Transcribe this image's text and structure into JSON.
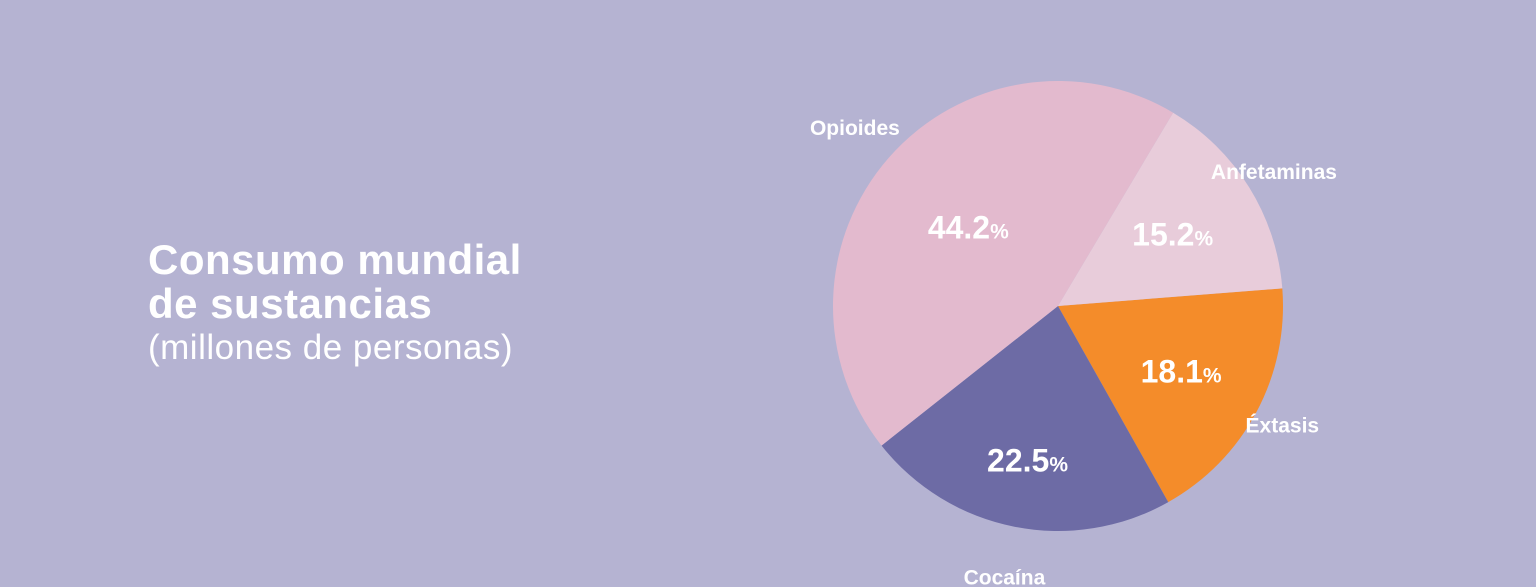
{
  "title_line1": "Consumo mundial",
  "title_line2": "de sustancias",
  "subtitle": "(millones de personas)",
  "colors": {
    "background": "#b5b3d2",
    "text": "#ffffff"
  },
  "chart_data": {
    "type": "pie",
    "title": "Consumo mundial de sustancias",
    "subtitle": "(millones de personas)",
    "unit": "%",
    "slices": [
      {
        "label": "Éxtasis",
        "value": 18.1,
        "display": "18.1",
        "color": "#f48c2a"
      },
      {
        "label": "Cocaína",
        "value": 22.5,
        "display": "22.5",
        "color": "#6d6ba5"
      },
      {
        "label": "Opioides",
        "value": 44.2,
        "display": "44.2",
        "color": "#e3bace"
      },
      {
        "label": "Anfetaminas",
        "value": 15.2,
        "display": "15.2",
        "color": "#e8ccda"
      }
    ]
  }
}
